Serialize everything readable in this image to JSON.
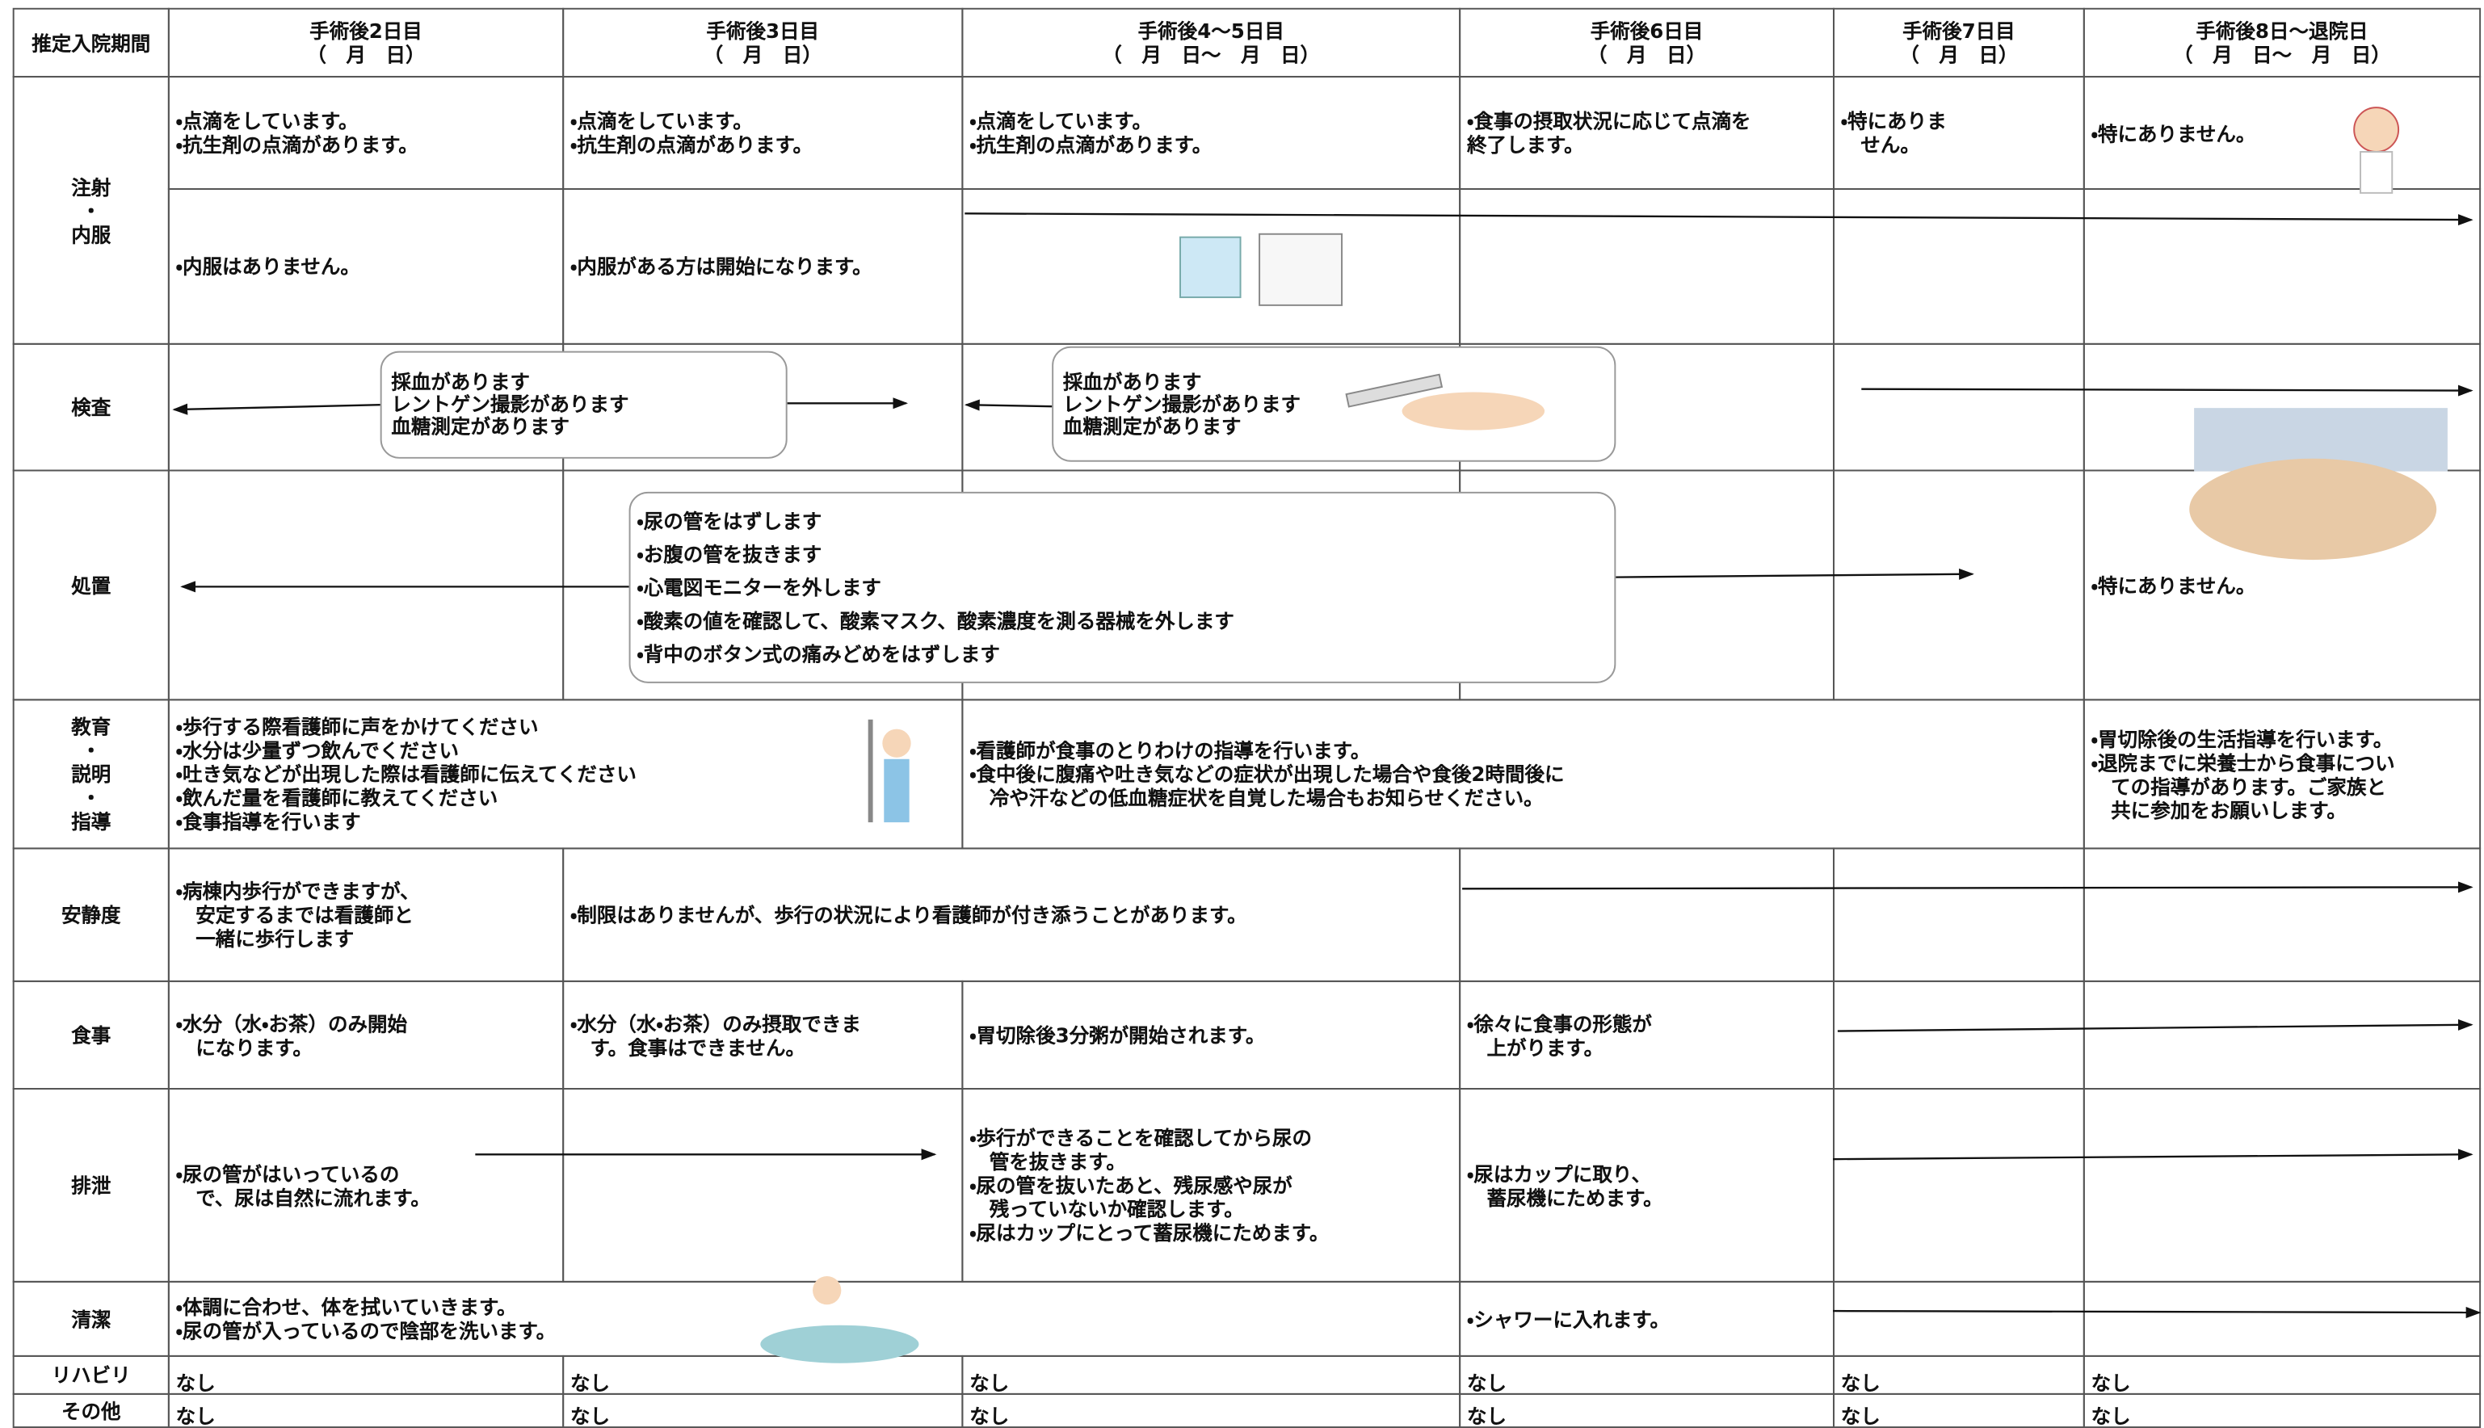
{
  "header": {
    "label": "推定入院期間",
    "columns": [
      {
        "lines": [
          "手術後2日目",
          "（　月　日）"
        ]
      },
      {
        "lines": [
          "手術後3日目",
          "（　月　日）"
        ]
      },
      {
        "lines": [
          "手術後4～5日目",
          "（　月　日～　月　日）"
        ]
      },
      {
        "lines": [
          "手術後6日目",
          "（　月　日）"
        ]
      },
      {
        "lines": [
          "手術後7日目",
          "（　月　日）"
        ]
      },
      {
        "lines": [
          "手術後8日～退院日",
          "（　月　日～　月　日）"
        ]
      }
    ]
  },
  "rows": [
    {
      "label": [
        "注射",
        "・",
        "内服"
      ],
      "cells": [
        {
          "lines": [
            "・点滴をしています。",
            "・抗生剤の点滴があります。"
          ]
        },
        {
          "lines": [
            "・点滴をしています。",
            "・抗生剤の点滴があります。"
          ]
        },
        {
          "lines": [
            "・点滴をしています。",
            "・抗生剤の点滴があります。"
          ]
        },
        {
          "lines": [
            "・食事の摂取状況に応じて点滴を",
            "終了します。"
          ]
        },
        {
          "lines": [
            "・特にありま",
            "　せん。"
          ]
        },
        {
          "lines": [
            "・特にありません。"
          ]
        },
        {
          "lines": [
            "・内服はありません。"
          ]
        },
        {
          "lines": [
            "・内服がある方は開始になります。"
          ]
        }
      ]
    },
    {
      "label": [
        "検査"
      ],
      "cells": [],
      "boxes": [
        {
          "lines": [
            "採血があります",
            "レントゲン撮影があります",
            "血糖測定があります"
          ]
        },
        {
          "lines": [
            "採血があります",
            "レントゲン撮影があります",
            "血糖測定があります"
          ]
        }
      ]
    },
    {
      "label": [
        "処置"
      ],
      "cells": [
        {
          "lines": [
            "・特にありません。"
          ]
        }
      ],
      "boxes": [
        {
          "lines": [
            "・尿の管をはずします",
            "・お腹の管を抜きます",
            "・心電図モニターを外します",
            "・酸素の値を確認して、酸素マスク、酸素濃度を測る器械を外します",
            "・背中のボタン式の痛みどめをはずします"
          ]
        }
      ]
    },
    {
      "label": [
        "教育",
        "・",
        "説明",
        "・",
        "指導"
      ],
      "cells": [
        {
          "lines": [
            "・歩行する際看護師に声をかけてください",
            "・水分は少量ずつ飲んでください",
            "・吐き気などが出現した際は看護師に伝えてください",
            "・飲んだ量を看護師に教えてください",
            "・食事指導を行います"
          ]
        },
        {
          "lines": [
            "・看護師が食事のとりわけの指導を行います。",
            "・食中後に腹痛や吐き気などの症状が出現した場合や食後2時間後に",
            "　冷や汗などの低血糖症状を自覚した場合もお知らせください。"
          ]
        },
        {
          "lines": [
            "・胃切除後の生活指導を行います。",
            "・退院までに栄養士から食事につい",
            "　ての指導があります。ご家族と",
            "　共に参加をお願いします。"
          ]
        }
      ]
    },
    {
      "label": [
        "安静度"
      ],
      "cells": [
        {
          "lines": [
            "・病棟内歩行ができますが、",
            "　安定するまでは看護師と",
            "　一緒に歩行します"
          ]
        },
        {
          "lines": [
            "・制限はありませんが、歩行の状況により看護師が付き添うことがあります。"
          ]
        }
      ]
    },
    {
      "label": [
        "食事"
      ],
      "cells": [
        {
          "lines": [
            "・水分（水・お茶）のみ開始",
            "　になります。"
          ]
        },
        {
          "lines": [
            "・水分（水・お茶）のみ摂取できま",
            "　す。食事はできません。"
          ]
        },
        {
          "lines": [
            "・胃切除後3分粥が開始されます。"
          ]
        },
        {
          "lines": [
            "・徐々に食事の形態が",
            "　上がります。"
          ]
        }
      ]
    },
    {
      "label": [
        "排泄"
      ],
      "cells": [
        {
          "lines": [
            "・尿の管がはいっているの",
            "　で、尿は自然に流れます。"
          ]
        },
        {
          "lines": [
            "・歩行ができることを確認してから尿の",
            "　管を抜きます。",
            "・尿の管を抜いたあと、残尿感や尿が",
            "　残っていないか確認します。",
            "・尿はカップにとって蓄尿機にためます。"
          ]
        },
        {
          "lines": [
            "・尿はカップに取り、",
            "　蓄尿機にためます。"
          ]
        }
      ]
    },
    {
      "label": [
        "清潔"
      ],
      "cells": [
        {
          "lines": [
            "・体調に合わせ、体を拭いていきます。",
            "・尿の管が入っているので陰部を洗います。"
          ]
        },
        {
          "lines": [
            "・シャワーに入れます。"
          ]
        }
      ]
    },
    {
      "label": [
        "リハビリ"
      ],
      "cells": [
        {
          "lines": [
            "なし"
          ]
        },
        {
          "lines": [
            "なし"
          ]
        },
        {
          "lines": [
            "なし"
          ]
        },
        {
          "lines": [
            "なし"
          ]
        },
        {
          "lines": [
            "なし"
          ]
        },
        {
          "lines": [
            "なし"
          ]
        }
      ]
    },
    {
      "label": [
        "その他"
      ],
      "cells": [
        {
          "lines": [
            "なし"
          ]
        },
        {
          "lines": [
            "なし"
          ]
        },
        {
          "lines": [
            "なし"
          ]
        },
        {
          "lines": [
            "なし"
          ]
        },
        {
          "lines": [
            "なし"
          ]
        },
        {
          "lines": [
            "なし"
          ]
        }
      ]
    }
  ]
}
